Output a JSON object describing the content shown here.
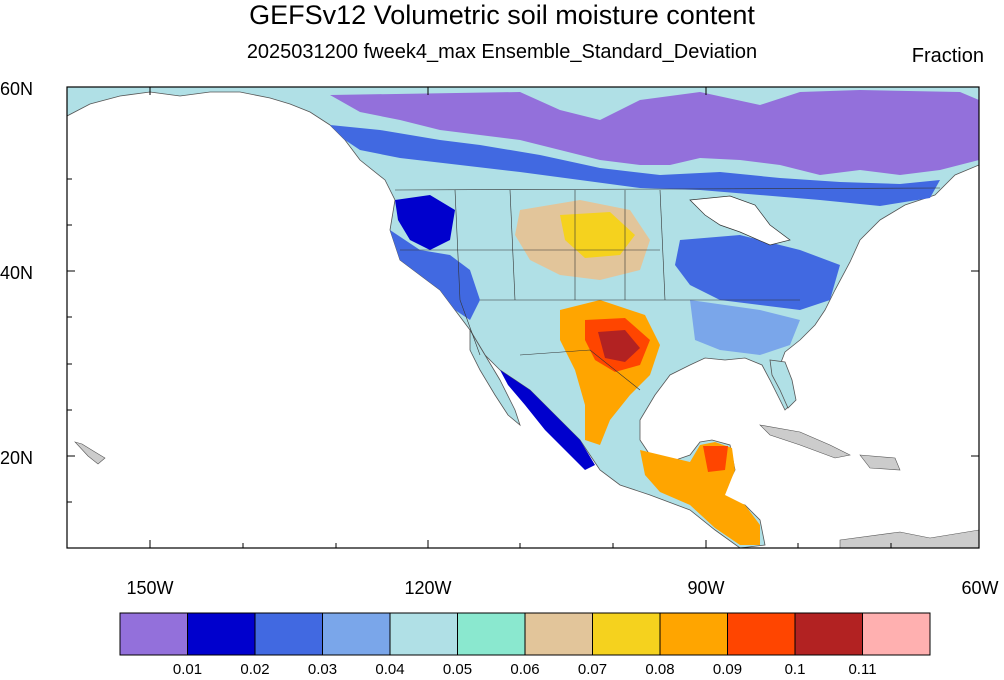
{
  "title": "GEFSv12 Volumetric soil moisture content",
  "subtitle": "2025031200 fweek4_max Ensemble_Standard_Deviation",
  "units": "Fraction",
  "lat_labels": [
    "60N",
    "40N",
    "20N"
  ],
  "lon_labels": [
    "150W",
    "120W",
    "90W",
    "60W"
  ],
  "colorbar": {
    "colors": [
      "#9370db",
      "#0000cd",
      "#4169e1",
      "#7aa6ea",
      "#b0e0e6",
      "#8ae8cf",
      "#e2c59a",
      "#f5d21e",
      "#ffa500",
      "#ff4500",
      "#b22222",
      "#ffb0b0"
    ],
    "labels": [
      "0.01",
      "0.02",
      "0.03",
      "0.04",
      "0.05",
      "0.06",
      "0.07",
      "0.08",
      "0.09",
      "0.1",
      "0.11"
    ]
  },
  "colors": {
    "ocean": "#ffffff",
    "nodata": "#cccccc",
    "border": "#222222"
  }
}
